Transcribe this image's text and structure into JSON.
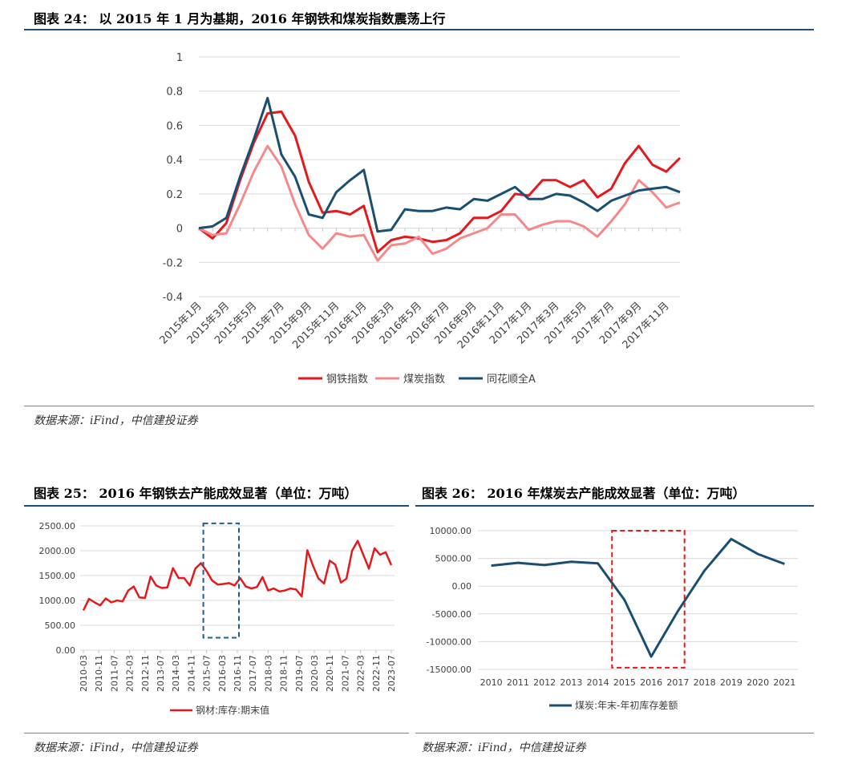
{
  "fig24": {
    "title": "图表 24： 以 2015 年 1 月为基期，2016 年钢铁和煤炭指数震荡上行",
    "source": "数据来源：iFind，中信建投证券"
  },
  "fig25": {
    "title": "图表 25： 2016 年钢铁去产能成效显著（单位：万吨）",
    "source": "数据来源：iFind，中信建投证券"
  },
  "fig26": {
    "title": "图表 26： 2016 年煤炭去产能成效显著（单位：万吨）",
    "source": "数据来源：iFind，中信建投证券"
  },
  "colors": {
    "rule": "#1f4e79",
    "red": "#e31a1c",
    "pink": "#f4898b",
    "navy": "#1a4f72",
    "grid": "#d9d9d9"
  },
  "chart_data": [
    {
      "type": "line",
      "ylim": [
        -0.4,
        1
      ],
      "yticks": [
        "1",
        "0.8",
        "0.6",
        "0.4",
        "0.2",
        "0",
        "-0.2",
        "-0.4"
      ],
      "x_labels": [
        "2015年1月",
        "2015年3月",
        "2015年5月",
        "2015年7月",
        "2015年9月",
        "2015年11月",
        "2016年1月",
        "2016年3月",
        "2016年5月",
        "2016年7月",
        "2016年9月",
        "2016年11月",
        "2017年1月",
        "2017年3月",
        "2017年5月",
        "2017年7月",
        "2017年9月",
        "2017年11月"
      ],
      "series": [
        {
          "name": "钢铁指数",
          "color": "#e31a1c",
          "values": [
            0,
            -0.06,
            0.03,
            0.28,
            0.5,
            0.67,
            0.68,
            0.54,
            0.27,
            0.09,
            0.1,
            0.08,
            0.13,
            -0.14,
            -0.07,
            -0.05,
            -0.06,
            -0.08,
            -0.07,
            -0.03,
            0.06,
            0.06,
            0.1,
            0.2,
            0.19,
            0.28,
            0.28,
            0.24,
            0.28,
            0.18,
            0.23,
            0.38,
            0.48,
            0.37,
            0.33,
            0.41
          ]
        },
        {
          "name": "煤炭指数",
          "color": "#f4898b",
          "values": [
            0,
            -0.04,
            -0.03,
            0.14,
            0.33,
            0.48,
            0.36,
            0.14,
            -0.04,
            -0.12,
            -0.03,
            -0.05,
            -0.04,
            -0.19,
            -0.1,
            -0.09,
            -0.05,
            -0.15,
            -0.12,
            -0.06,
            -0.03,
            0,
            0.08,
            0.08,
            -0.01,
            0.02,
            0.04,
            0.04,
            0.01,
            -0.05,
            0.04,
            0.14,
            0.28,
            0.21,
            0.12,
            0.15
          ]
        },
        {
          "name": "同花顺全A",
          "color": "#1a4f72",
          "values": [
            0,
            0.01,
            0.06,
            0.3,
            0.52,
            0.76,
            0.43,
            0.3,
            0.08,
            0.06,
            0.21,
            0.28,
            0.34,
            -0.02,
            -0.01,
            0.11,
            0.1,
            0.1,
            0.12,
            0.11,
            0.17,
            0.16,
            0.2,
            0.24,
            0.17,
            0.17,
            0.2,
            0.19,
            0.15,
            0.1,
            0.16,
            0.19,
            0.22,
            0.23,
            0.24,
            0.21
          ]
        }
      ]
    },
    {
      "type": "line",
      "ylim": [
        0,
        2500
      ],
      "yticks": [
        "2500.00",
        "2000.00",
        "1500.00",
        "1000.00",
        "500.00",
        "0.00"
      ],
      "x_labels": [
        "2010-03",
        "2010-11",
        "2011-07",
        "2012-03",
        "2012-11",
        "2013-07",
        "2014-03",
        "2014-11",
        "2015-07",
        "2016-03",
        "2016-11",
        "2017-07",
        "2018-03",
        "2018-11",
        "2019-07",
        "2020-03",
        "2020-11",
        "2021-07",
        "2022-03",
        "2022-11",
        "2023-07"
      ],
      "series": [
        {
          "name": "钢材:库存:期末值",
          "color": "#e31a1c",
          "values": [
            800,
            1030,
            960,
            900,
            1040,
            960,
            1000,
            980,
            1200,
            1280,
            1060,
            1050,
            1480,
            1300,
            1250,
            1260,
            1650,
            1450,
            1450,
            1300,
            1640,
            1750,
            1590,
            1400,
            1320,
            1330,
            1350,
            1300,
            1450,
            1280,
            1240,
            1270,
            1470,
            1200,
            1240,
            1180,
            1200,
            1240,
            1220,
            1080,
            2010,
            1700,
            1440,
            1340,
            1800,
            1720,
            1360,
            1440,
            2000,
            2200,
            1920,
            1640,
            2050,
            1920,
            1970,
            1710
          ]
        }
      ],
      "highlight_range": [
        "2015-07",
        "2016-11"
      ]
    },
    {
      "type": "line",
      "ylim": [
        -15000,
        10000
      ],
      "yticks": [
        "10000.00",
        "5000.00",
        "0.00",
        "-5000.00",
        "-10000.00",
        "-15000.00"
      ],
      "categories": [
        "2010",
        "2011",
        "2012",
        "2013",
        "2014",
        "2015",
        "2016",
        "2017",
        "2018",
        "2019",
        "2020",
        "2021"
      ],
      "series": [
        {
          "name": "煤炭:年末-年初库存差额",
          "color": "#1a4f72",
          "values": [
            3700,
            4200,
            3800,
            4400,
            4100,
            -2500,
            -12700,
            -4500,
            2800,
            8500,
            5800,
            4000
          ]
        }
      ],
      "highlight_range": [
        "2015",
        "2017"
      ]
    }
  ]
}
